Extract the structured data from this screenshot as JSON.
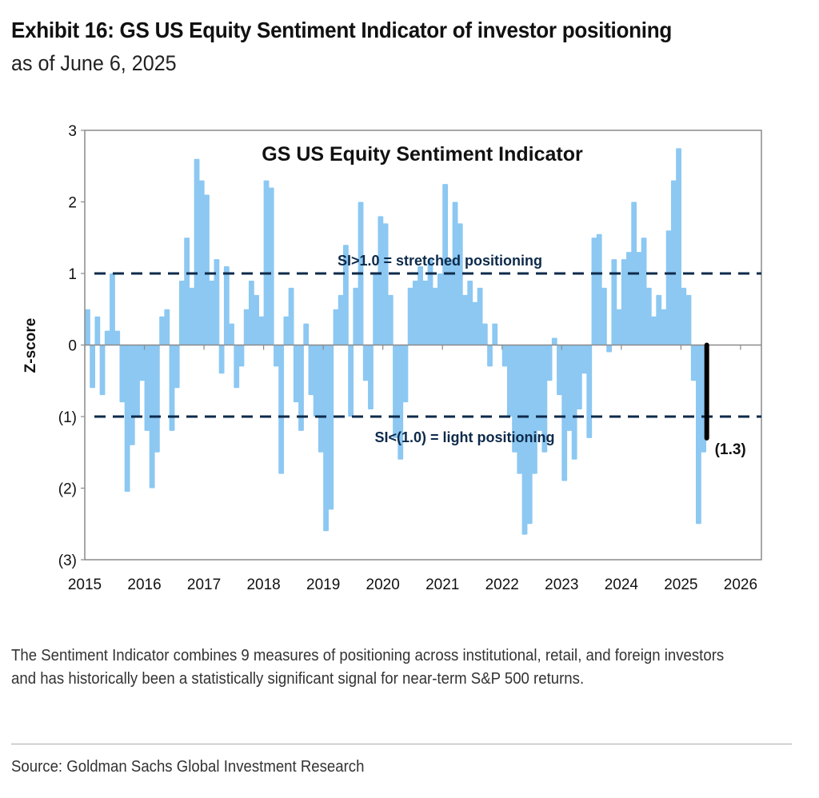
{
  "header": {
    "title": "Exhibit 16: GS US Equity Sentiment Indicator of investor positioning",
    "subtitle": "as of June 6, 2025"
  },
  "chart_data": {
    "type": "bar",
    "title": "GS US Equity Sentiment Indicator",
    "ylabel": "Z-score",
    "xlabel": "",
    "ylim": [
      -3,
      3
    ],
    "xlim": [
      2015,
      2026.35
    ],
    "y_ticks": [
      "(3)",
      "(2)",
      "(1)",
      "0",
      "1",
      "2",
      "3"
    ],
    "x_ticks": [
      "2015",
      "2016",
      "2017",
      "2018",
      "2019",
      "2020",
      "2021",
      "2022",
      "2023",
      "2024",
      "2025",
      "2026"
    ],
    "grid": false,
    "series_color": "#8CC8F2",
    "threshold_color": "#0D2A4A",
    "frequency": "monthly",
    "start": "2015-01",
    "series": [
      {
        "values": [
          0.5,
          -0.6,
          0.4,
          -0.7,
          0.2,
          1.0,
          0.2,
          -0.8,
          -2.05,
          -1.4,
          -1.0,
          -0.5,
          -1.2,
          -2.0,
          -1.5,
          0.4,
          0.5,
          -1.2,
          -0.6,
          0.9,
          1.5,
          0.8,
          2.6,
          2.3,
          2.1,
          0.9,
          1.2,
          -0.4,
          1.1,
          0.3,
          -0.6,
          -0.3,
          0.5,
          0.9,
          0.7,
          0.4,
          2.3,
          2.2,
          -0.3,
          -1.8,
          0.4,
          0.8,
          -0.8,
          -1.2,
          0.3,
          -0.7,
          -1.0,
          -1.5,
          -2.6,
          -2.3,
          0.5,
          0.7,
          1.4,
          -1.0,
          0.8,
          2.0,
          -0.5,
          -0.9,
          1.0,
          1.8,
          1.7,
          0.7,
          -1.3,
          -1.6,
          -0.8,
          0.8,
          0.9,
          1.1,
          0.9,
          1.2,
          0.8,
          1.0,
          2.25,
          1.2,
          2.0,
          1.7,
          0.7,
          0.9,
          0.6,
          0.8,
          0.3,
          -0.3,
          0.3,
          0.0,
          -0.3,
          -1.0,
          -1.5,
          -1.8,
          -2.65,
          -2.5,
          -1.8,
          -1.2,
          -1.5,
          -0.5,
          0.1,
          -0.7,
          -1.9,
          -1.2,
          -1.6,
          -0.9,
          -0.4,
          -1.3,
          1.5,
          1.55,
          0.8,
          -0.1,
          1.2,
          0.5,
          1.2,
          1.3,
          2.0,
          1.3,
          1.5,
          0.8,
          0.4,
          0.7,
          0.5,
          1.6,
          2.3,
          2.75,
          0.8,
          0.7,
          -0.5,
          -2.5,
          -1.5
        ]
      }
    ],
    "latest": {
      "date": "2025-06-06",
      "value": -1.3,
      "label": "(1.3)",
      "color": "#000000"
    },
    "thresholds": [
      {
        "value": 1.0,
        "label": "SI>1.0 = stretched positioning"
      },
      {
        "value": -1.0,
        "label": "SI<(1.0) = light positioning"
      }
    ]
  },
  "footer": {
    "caption": "The Sentiment Indicator combines 9 measures of positioning across institutional, retail, and foreign investors and has historically been a statistically significant signal for near-term S&P 500 returns.",
    "source": "Source: Goldman Sachs Global Investment Research"
  }
}
